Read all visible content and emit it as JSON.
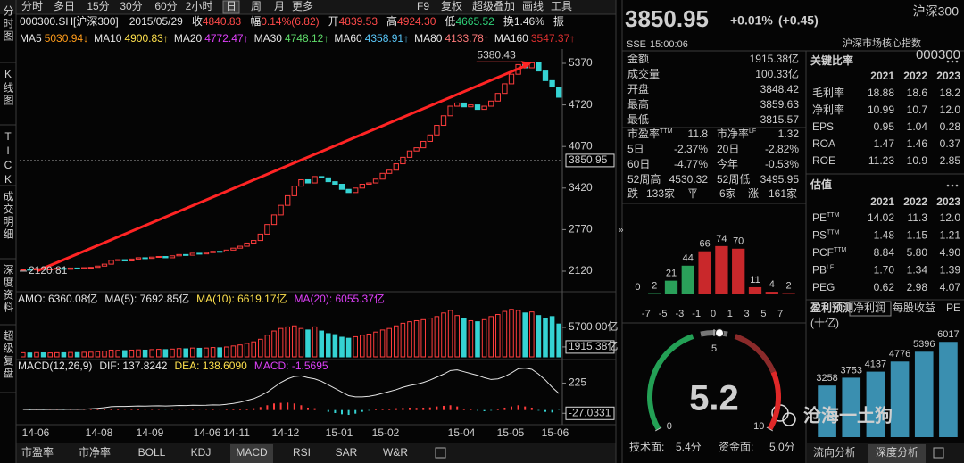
{
  "toolbar": {
    "periods": [
      "分时",
      "多日",
      "15分",
      "30分",
      "60分",
      "2小时",
      "日",
      "周",
      "月",
      "更多"
    ],
    "active": 6,
    "tools": [
      "F9",
      "复权",
      "超级叠加",
      "画线",
      "工具"
    ]
  },
  "side_tabs": [
    "分时图",
    "K线图",
    "TICK",
    "成交明细",
    "深度资料",
    "超级复盘"
  ],
  "info": {
    "code": "000300.SH[沪深300]",
    "date": "2015/05/29",
    "fields": [
      {
        "label": "收",
        "value": "4840.83",
        "color": "#ff4a4a"
      },
      {
        "label": "幅",
        "value": "0.14%(6.82)",
        "color": "#ff4a4a"
      },
      {
        "label": "开",
        "value": "4839.53",
        "color": "#ff4a4a"
      },
      {
        "label": "高",
        "value": "4924.30",
        "color": "#ff4a4a"
      },
      {
        "label": "低",
        "value": "4665.52",
        "color": "#2fd37a"
      },
      {
        "label": "换",
        "value": "1.46%",
        "color": "#e6e6e6"
      },
      {
        "label": "振"
      }
    ]
  },
  "ma_legend": [
    {
      "name": "MA5",
      "value": "5030.94↓",
      "color": "#ff9c1a"
    },
    {
      "name": "MA10",
      "value": "4900.83↑",
      "color": "#ffe14d"
    },
    {
      "name": "MA20",
      "value": "4772.47↑",
      "color": "#e040fb"
    },
    {
      "name": "MA30",
      "value": "4748.12↑",
      "color": "#5fdc6a"
    },
    {
      "name": "MA60",
      "value": "4358.91↑",
      "color": "#5ac8fa"
    },
    {
      "name": "MA80",
      "value": "4133.78↑",
      "color": "#ff7a7a"
    },
    {
      "name": "MA160",
      "value": "3547.37↑",
      "color": "#e03030"
    }
  ],
  "chart_data": [
    {
      "type": "candlestick",
      "values": [
        2150,
        2140,
        2160,
        2145,
        2155,
        2165,
        2150,
        2170,
        2160,
        2175,
        2180,
        2200,
        2230,
        2290,
        2300,
        2280,
        2310,
        2330,
        2320,
        2340,
        2350,
        2330,
        2360,
        2380,
        2370,
        2400,
        2390,
        2410,
        2430,
        2420,
        2450,
        2480,
        2510,
        2560,
        2600,
        2700,
        2850,
        3000,
        3150,
        3300,
        3450,
        3550,
        3500,
        3600,
        3580,
        3520,
        3480,
        3400,
        3350,
        3420,
        3480,
        3500,
        3560,
        3650,
        3700,
        3800,
        3900,
        4000,
        4050,
        4150,
        4250,
        4400,
        4550,
        4700,
        4750,
        4690,
        4720,
        4650,
        4700,
        4780,
        4900,
        5050,
        5200,
        5350,
        5300,
        5380,
        5250,
        5100,
        5000,
        4840
      ],
      "ylim": [
        1827,
        5593
      ],
      "yticks": [
        5370,
        4720,
        4070,
        3420,
        2770,
        2120
      ],
      "last_price": 3850.95,
      "high_label": 5380.43,
      "low_label": 2120.81,
      "date_labels": [
        "14-06",
        "14-08",
        "14-09",
        "14-06",
        "14-11",
        "14-12",
        "15-01",
        "15-02",
        "15-04",
        "15-05",
        "15-06"
      ],
      "up_color": "#ff3d3d",
      "down_color": "#35d3d3",
      "trend_color": "#ff2424"
    },
    {
      "type": "volume",
      "indicators": [
        {
          "text": "AMO: 6360.08亿",
          "color": "#e6e6e6"
        },
        {
          "text": "MA(5): 7692.85亿",
          "color": "#e6e6e6"
        },
        {
          "text": "MA(10): 6619.17亿",
          "color": "#ffe14d"
        },
        {
          "text": "MA(20): 6055.37亿",
          "color": "#e040fb"
        }
      ],
      "values": [
        800,
        750,
        820,
        780,
        760,
        800,
        790,
        850,
        820,
        880,
        900,
        1000,
        1100,
        1300,
        1250,
        1200,
        1300,
        1350,
        1300,
        1400,
        1450,
        1400,
        1500,
        1600,
        1550,
        1700,
        1650,
        1700,
        1800,
        1750,
        1900,
        2100,
        2300,
        2600,
        2900,
        3400,
        4200,
        5000,
        5500,
        5800,
        6000,
        5500,
        5200,
        5800,
        5000,
        4500,
        4300,
        3800,
        3600,
        3900,
        4200,
        4400,
        4800,
        5200,
        5500,
        6000,
        6500,
        6800,
        7000,
        7200,
        7500,
        7800,
        8500,
        9000,
        8000,
        7500,
        7000,
        6800,
        7200,
        7800,
        8200,
        8800,
        9200,
        9000,
        8500,
        8700,
        8000,
        7500,
        7800,
        6360
      ],
      "ylim": [
        0,
        9500
      ],
      "yticks": [
        {
          "value": 5700,
          "label": "5700.00亿"
        },
        {
          "value": 1915.38,
          "label": "1915.38亿"
        }
      ]
    },
    {
      "type": "macd",
      "indicators": [
        {
          "text": "MACD(12,26,9)",
          "color": "#e6e6e6"
        },
        {
          "text": "DIF: 137.8242",
          "color": "#e6e6e6"
        },
        {
          "text": "DEA: 138.6090",
          "color": "#ffe14d"
        },
        {
          "text": "MACD: -1.5695",
          "color": "#e040fb"
        }
      ],
      "values": [
        0,
        -2,
        2,
        -1,
        1,
        2,
        -1,
        3,
        1,
        2,
        4,
        6,
        8,
        10,
        6,
        2,
        4,
        5,
        2,
        3,
        3,
        -1,
        2,
        3,
        1,
        3,
        1,
        2,
        4,
        1,
        4,
        6,
        8,
        12,
        15,
        25,
        40,
        55,
        60,
        62,
        55,
        40,
        20,
        15,
        0,
        -15,
        -25,
        -35,
        -40,
        -30,
        -15,
        -5,
        5,
        10,
        12,
        15,
        18,
        20,
        18,
        20,
        22,
        30,
        35,
        40,
        30,
        10,
        5,
        -5,
        -10,
        -5,
        10,
        20,
        30,
        40,
        30,
        20,
        -5,
        -15,
        -20,
        -2
      ],
      "dif": [
        5,
        4,
        5,
        4,
        5,
        6,
        5,
        7,
        6,
        7,
        10,
        14,
        20,
        28,
        30,
        30,
        32,
        34,
        33,
        35,
        36,
        34,
        36,
        38,
        37,
        40,
        39,
        40,
        43,
        42,
        48,
        55,
        65,
        80,
        95,
        120,
        150,
        190,
        230,
        260,
        280,
        285,
        270,
        260,
        240,
        210,
        180,
        150,
        120,
        110,
        110,
        115,
        125,
        140,
        155,
        170,
        190,
        205,
        215,
        230,
        250,
        275,
        300,
        330,
        335,
        320,
        305,
        290,
        270,
        255,
        260,
        280,
        310,
        345,
        350,
        340,
        300,
        250,
        190,
        138
      ],
      "ylim": [
        -92,
        355
      ],
      "yticks": [
        225,
        -27.0331
      ]
    },
    {
      "type": "bar",
      "values": [
        0,
        2,
        21,
        44,
        66,
        74,
        70,
        11,
        4,
        2
      ],
      "colors": [
        "#2aa05a",
        "#2aa05a",
        "#2aa05a",
        "#2aa05a",
        "#c9282b",
        "#c9282b",
        "#c9282b",
        "#c9282b",
        "#c9282b",
        "#c9282b"
      ],
      "axis_labels": [
        -7,
        -5,
        -3,
        -1,
        0,
        1,
        3,
        5,
        7
      ],
      "label_colors": [
        "#2fd37a",
        "#2fd37a",
        "#2fd37a",
        "#2fd37a",
        "#e6e6e6",
        "#ff4a4a",
        "#ff4a4a",
        "#ff4a4a",
        "#ff4a4a"
      ],
      "ylim": [
        0,
        82
      ]
    },
    {
      "type": "gauge",
      "value": 5.2,
      "ylim": [
        0,
        10
      ],
      "yticks": [
        0,
        5,
        10
      ],
      "color": "#ff3030"
    },
    {
      "type": "bar",
      "values": [
        3258,
        3753,
        4137,
        4776,
        5396,
        6017
      ],
      "color": "#3a8fb0",
      "ylim": [
        0,
        6200
      ]
    }
  ],
  "bottom_tabs": {
    "items": [
      "市盈率",
      "市净率",
      "BOLL",
      "KDJ",
      "MACD",
      "RSI",
      "SAR",
      "W&R"
    ],
    "active": 4
  },
  "quote": {
    "price": "3850.95",
    "change": "+0.01%",
    "change_abs": "(+0.45)",
    "name": "沪深300",
    "exchange": "SSE",
    "time": "15:00:06",
    "desc": "沪深市场核心指数",
    "code": "000300"
  },
  "stats": [
    {
      "label": "金额",
      "value": "1915.38亿",
      "color": "#e6e6e6"
    },
    {
      "label": "成交量",
      "value": "100.33亿",
      "color": "#e6e6e6"
    },
    {
      "label": "开盘",
      "value": "3848.42",
      "color": "#ff4a4a"
    },
    {
      "label": "最高",
      "value": "3859.63",
      "color": "#ff4a4a"
    },
    {
      "label": "最低",
      "value": "3815.57",
      "color": "#ff4a4a"
    }
  ],
  "metrics": [
    [
      {
        "label": "市盈率",
        "sup": "TTM",
        "value": "11.8",
        "color": "#e6e6e6"
      },
      {
        "label": "市净率",
        "sup": "LF",
        "value": "1.32",
        "color": "#e6e6e6"
      }
    ],
    [
      {
        "label": "5日",
        "value": "-2.37%",
        "color": "#2fd37a"
      },
      {
        "label": "20日",
        "value": "-2.82%",
        "color": "#2fd37a"
      }
    ],
    [
      {
        "label": "60日",
        "value": "-4.77%",
        "color": "#2fd37a"
      },
      {
        "label": "今年",
        "value": "-0.53%",
        "color": "#2fd37a"
      }
    ],
    [
      {
        "label": "52周高",
        "value": "4530.32",
        "color": "#e6e6e6"
      },
      {
        "label": "52周低",
        "value": "3495.95",
        "color": "#e6e6e6"
      }
    ]
  ],
  "breadth": [
    {
      "label": "跌",
      "value": "133家",
      "color": "#2fd37a"
    },
    {
      "label": "平",
      "value": "6家",
      "color": "#e6e6e6"
    },
    {
      "label": "涨",
      "value": "161家",
      "color": "#ff4a4a"
    }
  ],
  "score": [
    {
      "label": "技术面:",
      "value": "5.4分",
      "color": "#ff4a4a"
    },
    {
      "label": "资金面:",
      "value": "5.0分",
      "color": "#e6e6e6"
    }
  ],
  "ratios": {
    "title": "关键比率",
    "years": [
      "2021",
      "2022",
      "2023"
    ],
    "rows": [
      {
        "name": "毛利率",
        "values": [
          "18.88",
          "18.6",
          "18.2"
        ]
      },
      {
        "name": "净利率",
        "values": [
          "10.99",
          "10.7",
          "12.0"
        ]
      },
      {
        "name": "EPS",
        "values": [
          "0.95",
          "1.04",
          "0.28"
        ]
      },
      {
        "name": "ROA",
        "values": [
          "1.47",
          "1.46",
          "0.37"
        ]
      },
      {
        "name": "ROE",
        "values": [
          "11.23",
          "10.9",
          "2.85"
        ]
      }
    ]
  },
  "valuation": {
    "title": "估值",
    "years": [
      "2021",
      "2022",
      "2023"
    ],
    "rows": [
      {
        "name": "PE",
        "sup": "TTM",
        "values": [
          "14.02",
          "11.3",
          "12.0"
        ]
      },
      {
        "name": "PS",
        "sup": "TTM",
        "values": [
          "1.48",
          "1.15",
          "1.21"
        ]
      },
      {
        "name": "PCF",
        "sup": "TTM",
        "values": [
          "8.84",
          "5.80",
          "4.90"
        ]
      },
      {
        "name": "PB",
        "sup": "LF",
        "values": [
          "1.70",
          "1.34",
          "1.39"
        ]
      },
      {
        "name": "PEG",
        "values": [
          "0.62",
          "2.98",
          "4.07"
        ]
      }
    ]
  },
  "forecast": {
    "tabs": [
      "盈利预测",
      "净利润",
      "每股收益",
      "PE"
    ],
    "active": 1,
    "unit": "(十亿)"
  },
  "right_tabs": {
    "items": [
      "流向分析",
      "深度分析"
    ],
    "active": 1
  },
  "watermark": "沧海一土狗"
}
